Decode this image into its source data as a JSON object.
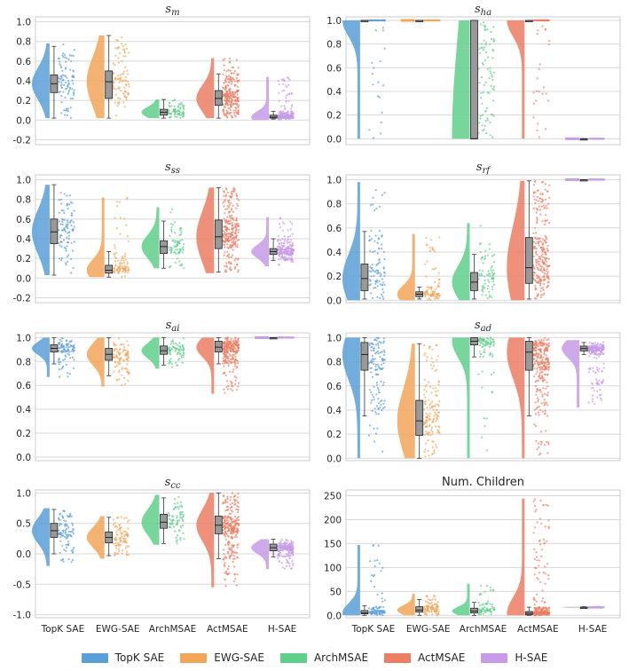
{
  "colors": {
    "TopK SAE": "#5b9fd8",
    "EWG-SAE": "#f2a65a",
    "ArchMSAE": "#5fcf8b",
    "ActMSAE": "#ec7e63",
    "H-SAE": "#c79be6",
    "grid": "#d8d8d8",
    "box": "#999999"
  },
  "legend": [
    "TopK SAE",
    "EWG-SAE",
    "ArchMSAE",
    "ActMSAE",
    "H-SAE"
  ],
  "chart_data": [
    {
      "type": "violin-box-strip",
      "title": "s_m",
      "ylim": [
        -0.25,
        1.05
      ],
      "yticks": [
        -0.2,
        0.0,
        0.2,
        0.4,
        0.6,
        0.8,
        1.0
      ],
      "grid": true,
      "categories": [
        "TopK SAE",
        "EWG-SAE",
        "ArchMSAE",
        "ActMSAE",
        "H-SAE"
      ],
      "series": [
        {
          "name": "TopK SAE",
          "q1": 0.28,
          "median": 0.37,
          "q3": 0.46,
          "whisker_low": 0.02,
          "whisker_high": 0.75,
          "points_range": [
            0.03,
            0.78
          ],
          "points_count": 90
        },
        {
          "name": "EWG-SAE",
          "q1": 0.22,
          "median": 0.39,
          "q3": 0.5,
          "whisker_low": 0.02,
          "whisker_high": 0.86,
          "points_range": [
            0.02,
            0.85
          ],
          "points_count": 90
        },
        {
          "name": "ArchMSAE",
          "q1": 0.05,
          "median": 0.08,
          "q3": 0.11,
          "whisker_low": 0.02,
          "whisker_high": 0.21,
          "points_range": [
            0.02,
            0.21
          ],
          "points_count": 70
        },
        {
          "name": "ActMSAE",
          "q1": 0.15,
          "median": 0.22,
          "q3": 0.3,
          "whisker_low": 0.02,
          "whisker_high": 0.47,
          "points_range": [
            0.02,
            0.63
          ],
          "points_count": 240
        },
        {
          "name": "H-SAE",
          "q1": 0.02,
          "median": 0.03,
          "q3": 0.05,
          "whisker_low": 0.01,
          "whisker_high": 0.09,
          "points_range": [
            0.0,
            0.44
          ],
          "points_count": 200
        }
      ]
    },
    {
      "type": "violin-box-strip",
      "title": "s_ha",
      "ylim": [
        -0.05,
        1.03
      ],
      "yticks": [
        0.0,
        0.2,
        0.4,
        0.6,
        0.8,
        1.0
      ],
      "grid": true,
      "categories": [
        "TopK SAE",
        "EWG-SAE",
        "ArchMSAE",
        "ActMSAE",
        "H-SAE"
      ],
      "series": [
        {
          "name": "TopK SAE",
          "q1": 1.0,
          "median": 1.0,
          "q3": 1.0,
          "whisker_low": 1.0,
          "whisker_high": 1.0,
          "points_range": [
            0.0,
            1.0
          ],
          "points_count": 80
        },
        {
          "name": "EWG-SAE",
          "q1": 1.0,
          "median": 1.0,
          "q3": 1.0,
          "whisker_low": 1.0,
          "whisker_high": 1.0,
          "points_range": [
            1.0,
            1.0
          ],
          "points_count": 80
        },
        {
          "name": "ArchMSAE",
          "q1": 0.0,
          "median": 0.0,
          "q3": 1.0,
          "whisker_low": 0.0,
          "whisker_high": 1.0,
          "points_range": [
            0.0,
            1.0
          ],
          "points_count": 80
        },
        {
          "name": "ActMSAE",
          "q1": 1.0,
          "median": 1.0,
          "q3": 1.0,
          "whisker_low": 1.0,
          "whisker_high": 1.0,
          "points_range": [
            0.0,
            1.0
          ],
          "points_count": 80
        },
        {
          "name": "H-SAE",
          "q1": 0.0,
          "median": 0.0,
          "q3": 0.0,
          "whisker_low": 0.0,
          "whisker_high": 0.0,
          "points_range": [
            0.0,
            0.0
          ],
          "points_count": 60
        }
      ]
    },
    {
      "type": "violin-box-strip",
      "title": "s_ss",
      "ylim": [
        -0.25,
        1.05
      ],
      "yticks": [
        -0.2,
        0.0,
        0.2,
        0.4,
        0.6,
        0.8,
        1.0
      ],
      "grid": true,
      "categories": [
        "TopK SAE",
        "EWG-SAE",
        "ArchMSAE",
        "ActMSAE",
        "H-SAE"
      ],
      "series": [
        {
          "name": "TopK SAE",
          "q1": 0.35,
          "median": 0.47,
          "q3": 0.6,
          "whisker_low": 0.03,
          "whisker_high": 0.95,
          "points_range": [
            0.05,
            0.95
          ],
          "points_count": 90
        },
        {
          "name": "EWG-SAE",
          "q1": 0.05,
          "median": 0.08,
          "q3": 0.13,
          "whisker_low": 0.01,
          "whisker_high": 0.27,
          "points_range": [
            0.01,
            0.82
          ],
          "points_count": 90
        },
        {
          "name": "ArchMSAE",
          "q1": 0.25,
          "median": 0.32,
          "q3": 0.38,
          "whisker_low": 0.1,
          "whisker_high": 0.58,
          "points_range": [
            0.1,
            0.72
          ],
          "points_count": 70
        },
        {
          "name": "ActMSAE",
          "q1": 0.3,
          "median": 0.42,
          "q3": 0.59,
          "whisker_low": 0.06,
          "whisker_high": 0.92,
          "points_range": [
            0.05,
            0.92
          ],
          "points_count": 240
        },
        {
          "name": "H-SAE",
          "q1": 0.24,
          "median": 0.27,
          "q3": 0.3,
          "whisker_low": 0.18,
          "whisker_high": 0.4,
          "points_range": [
            0.12,
            0.62
          ],
          "points_count": 200
        }
      ]
    },
    {
      "type": "violin-box-strip",
      "title": "s_rf",
      "ylim": [
        -0.02,
        1.04
      ],
      "yticks": [
        0.0,
        0.2,
        0.4,
        0.6,
        0.8,
        1.0
      ],
      "grid": true,
      "categories": [
        "TopK SAE",
        "EWG-SAE",
        "ArchMSAE",
        "ActMSAE",
        "H-SAE"
      ],
      "series": [
        {
          "name": "TopK SAE",
          "q1": 0.08,
          "median": 0.18,
          "q3": 0.3,
          "whisker_low": 0.01,
          "whisker_high": 0.57,
          "points_range": [
            0.0,
            0.98
          ],
          "points_count": 90
        },
        {
          "name": "EWG-SAE",
          "q1": 0.03,
          "median": 0.05,
          "q3": 0.07,
          "whisker_low": 0.01,
          "whisker_high": 0.11,
          "points_range": [
            0.0,
            0.55
          ],
          "points_count": 90
        },
        {
          "name": "ArchMSAE",
          "q1": 0.08,
          "median": 0.15,
          "q3": 0.23,
          "whisker_low": 0.01,
          "whisker_high": 0.38,
          "points_range": [
            0.0,
            0.64
          ],
          "points_count": 70
        },
        {
          "name": "ActMSAE",
          "q1": 0.14,
          "median": 0.27,
          "q3": 0.52,
          "whisker_low": 0.01,
          "whisker_high": 0.99,
          "points_range": [
            0.0,
            0.98
          ],
          "points_count": 240
        },
        {
          "name": "H-SAE",
          "q1": 1.0,
          "median": 1.0,
          "q3": 1.0,
          "whisker_low": 1.0,
          "whisker_high": 1.0,
          "points_range": [
            1.0,
            1.0
          ],
          "points_count": 80
        }
      ]
    },
    {
      "type": "violin-box-strip",
      "title": "s_ai",
      "ylim": [
        -0.03,
        1.04
      ],
      "yticks": [
        0.0,
        0.2,
        0.4,
        0.6,
        0.8,
        1.0
      ],
      "grid": true,
      "categories": [
        "TopK SAE",
        "EWG-SAE",
        "ArchMSAE",
        "ActMSAE",
        "H-SAE"
      ],
      "series": [
        {
          "name": "TopK SAE",
          "q1": 0.88,
          "median": 0.91,
          "q3": 0.94,
          "whisker_low": 0.78,
          "whisker_high": 1.0,
          "points_range": [
            0.67,
            1.0
          ],
          "points_count": 90
        },
        {
          "name": "EWG-SAE",
          "q1": 0.81,
          "median": 0.86,
          "q3": 0.91,
          "whisker_low": 0.68,
          "whisker_high": 1.0,
          "points_range": [
            0.59,
            1.0
          ],
          "points_count": 90
        },
        {
          "name": "ArchMSAE",
          "q1": 0.86,
          "median": 0.89,
          "q3": 0.93,
          "whisker_low": 0.77,
          "whisker_high": 1.0,
          "points_range": [
            0.74,
            1.0
          ],
          "points_count": 70
        },
        {
          "name": "ActMSAE",
          "q1": 0.88,
          "median": 0.92,
          "q3": 0.97,
          "whisker_low": 0.78,
          "whisker_high": 1.0,
          "points_range": [
            0.53,
            1.0
          ],
          "points_count": 240
        },
        {
          "name": "H-SAE",
          "q1": 1.0,
          "median": 1.0,
          "q3": 1.0,
          "whisker_low": 1.0,
          "whisker_high": 1.0,
          "points_range": [
            1.0,
            1.0
          ],
          "points_count": 80
        }
      ]
    },
    {
      "type": "violin-box-strip",
      "title": "s_ad",
      "ylim": [
        -0.02,
        1.04
      ],
      "yticks": [
        0.0,
        0.2,
        0.4,
        0.6,
        0.8,
        1.0
      ],
      "grid": true,
      "categories": [
        "TopK SAE",
        "EWG-SAE",
        "ArchMSAE",
        "ActMSAE",
        "H-SAE"
      ],
      "series": [
        {
          "name": "TopK SAE",
          "q1": 0.73,
          "median": 0.86,
          "q3": 0.96,
          "whisker_low": 0.35,
          "whisker_high": 1.0,
          "points_range": [
            0.0,
            1.0
          ],
          "points_count": 120
        },
        {
          "name": "EWG-SAE",
          "q1": 0.19,
          "median": 0.31,
          "q3": 0.48,
          "whisker_low": 0.0,
          "whisker_high": 0.95,
          "points_range": [
            0.0,
            0.95
          ],
          "points_count": 140
        },
        {
          "name": "ArchMSAE",
          "q1": 0.94,
          "median": 0.97,
          "q3": 1.0,
          "whisker_low": 0.84,
          "whisker_high": 1.0,
          "points_range": [
            0.0,
            1.0
          ],
          "points_count": 80
        },
        {
          "name": "ActMSAE",
          "q1": 0.73,
          "median": 0.88,
          "q3": 0.97,
          "whisker_low": 0.35,
          "whisker_high": 1.0,
          "points_range": [
            0.0,
            1.0
          ],
          "points_count": 260
        },
        {
          "name": "H-SAE",
          "q1": 0.89,
          "median": 0.91,
          "q3": 0.93,
          "whisker_low": 0.86,
          "whisker_high": 0.96,
          "points_range": [
            0.42,
            0.98
          ],
          "points_count": 200
        }
      ]
    },
    {
      "type": "violin-box-strip",
      "title": "s_cc",
      "ylim": [
        -1.05,
        1.05
      ],
      "yticks": [
        -1.0,
        -0.5,
        0.0,
        0.5,
        1.0
      ],
      "grid": true,
      "categories": [
        "TopK SAE",
        "EWG-SAE",
        "ArchMSAE",
        "ActMSAE",
        "H-SAE"
      ],
      "series": [
        {
          "name": "TopK SAE",
          "q1": 0.27,
          "median": 0.38,
          "q3": 0.5,
          "whisker_low": 0.0,
          "whisker_high": 0.73,
          "points_range": [
            -0.2,
            0.75
          ],
          "points_count": 90
        },
        {
          "name": "EWG-SAE",
          "q1": 0.18,
          "median": 0.27,
          "q3": 0.36,
          "whisker_low": -0.03,
          "whisker_high": 0.6,
          "points_range": [
            -0.08,
            0.62
          ],
          "points_count": 90
        },
        {
          "name": "ArchMSAE",
          "q1": 0.42,
          "median": 0.52,
          "q3": 0.65,
          "whisker_low": 0.17,
          "whisker_high": 0.92,
          "points_range": [
            0.15,
            0.97
          ],
          "points_count": 70
        },
        {
          "name": "ActMSAE",
          "q1": 0.33,
          "median": 0.47,
          "q3": 0.62,
          "whisker_low": -0.08,
          "whisker_high": 1.0,
          "points_range": [
            -0.55,
            1.0
          ],
          "points_count": 260
        },
        {
          "name": "H-SAE",
          "q1": 0.05,
          "median": 0.1,
          "q3": 0.16,
          "whisker_low": -0.05,
          "whisker_high": 0.24,
          "points_range": [
            -0.25,
            0.22
          ],
          "points_count": 200
        }
      ]
    },
    {
      "type": "violin-box-strip",
      "title": "Num. Children",
      "ylim": [
        -5,
        262
      ],
      "yticks": [
        0,
        50,
        100,
        150,
        200,
        250
      ],
      "grid": true,
      "categories": [
        "TopK SAE",
        "EWG-SAE",
        "ArchMSAE",
        "ActMSAE",
        "H-SAE"
      ],
      "series": [
        {
          "name": "TopK SAE",
          "q1": 3,
          "median": 5,
          "q3": 10,
          "whisker_low": 0,
          "whisker_high": 20,
          "points_range": [
            0,
            147
          ],
          "points_count": 90
        },
        {
          "name": "EWG-SAE",
          "q1": 7,
          "median": 11,
          "q3": 18,
          "whisker_low": 0,
          "whisker_high": 33,
          "points_range": [
            0,
            45
          ],
          "points_count": 90
        },
        {
          "name": "ArchMSAE",
          "q1": 5,
          "median": 9,
          "q3": 15,
          "whisker_low": 0,
          "whisker_high": 27,
          "points_range": [
            0,
            66
          ],
          "points_count": 70
        },
        {
          "name": "ActMSAE",
          "q1": 1,
          "median": 4,
          "q3": 8,
          "whisker_low": 0,
          "whisker_high": 17,
          "points_range": [
            0,
            244
          ],
          "points_count": 240
        },
        {
          "name": "H-SAE",
          "q1": 16,
          "median": 17,
          "q3": 17,
          "whisker_low": 16,
          "whisker_high": 18,
          "points_range": [
            16,
            18
          ],
          "points_count": 60
        }
      ]
    }
  ]
}
